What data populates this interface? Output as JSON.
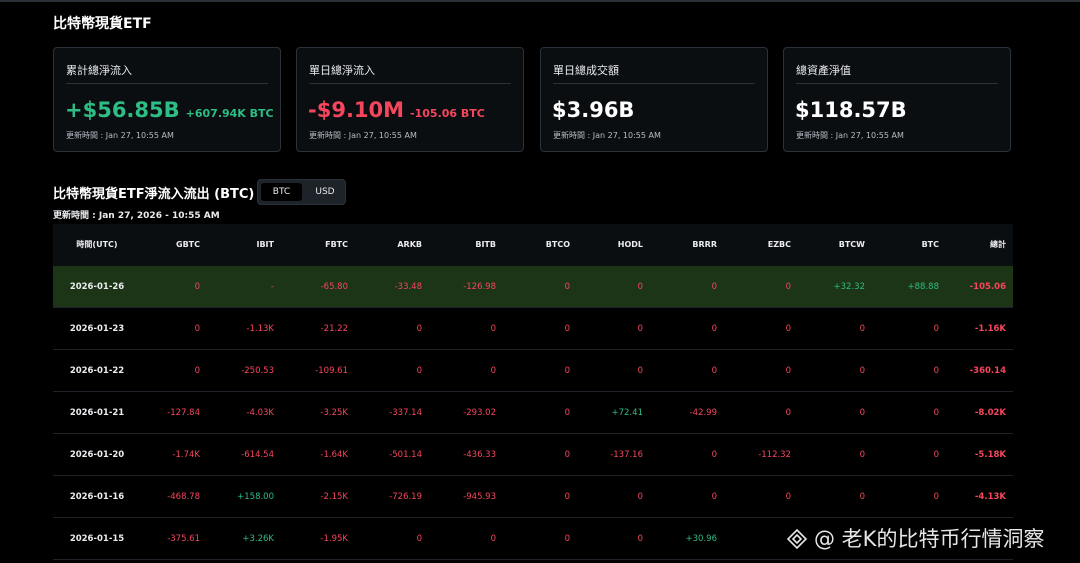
{
  "page": {
    "title": "比特幣現貨ETF"
  },
  "cards": [
    {
      "title": "累計總淨流入",
      "value": "+$56.85B",
      "sub": "+607.94K BTC",
      "value_color": "green",
      "sub_color": "green",
      "updated": "更新時間 : Jan 27, 10:55 AM"
    },
    {
      "title": "單日總淨流入",
      "value": "-$9.10M",
      "sub": "-105.06 BTC",
      "value_color": "red",
      "sub_color": "red",
      "updated": "更新時間 : Jan 27, 10:55 AM"
    },
    {
      "title": "單日總成交額",
      "value": "$3.96B",
      "sub": "",
      "value_color": "white",
      "sub_color": "white",
      "updated": "更新時間 : Jan 27, 10:55 AM"
    },
    {
      "title": "總資產淨值",
      "value": "$118.57B",
      "sub": "",
      "value_color": "white",
      "sub_color": "white",
      "updated": "更新時間 : Jan 27, 10:55 AM"
    }
  ],
  "flow_section": {
    "title": "比特幣現貨ETF淨流入流出 (BTC)",
    "toggle": {
      "options": [
        "BTC",
        "USD"
      ],
      "selected": "BTC"
    },
    "updated": "更新時間 : Jan 27, 2026 - 10:55 AM"
  },
  "table": {
    "headers": [
      "時間(UTC)",
      "GBTC",
      "IBIT",
      "FBTC",
      "ARKB",
      "BITB",
      "BTCO",
      "HODL",
      "BRRR",
      "EZBC",
      "BTCW",
      "BTC",
      "總計"
    ],
    "rows": [
      {
        "highlight": true,
        "cells": [
          "2026-01-26",
          "0",
          "-",
          "-65.80",
          "-33.48",
          "-126.98",
          "0",
          "0",
          "0",
          "0",
          "+32.32",
          "+88.88",
          "-105.06"
        ]
      },
      {
        "highlight": false,
        "cells": [
          "2026-01-23",
          "0",
          "-1.13K",
          "-21.22",
          "0",
          "0",
          "0",
          "0",
          "0",
          "0",
          "0",
          "0",
          "-1.16K"
        ]
      },
      {
        "highlight": false,
        "cells": [
          "2026-01-22",
          "0",
          "-250.53",
          "-109.61",
          "0",
          "0",
          "0",
          "0",
          "0",
          "0",
          "0",
          "0",
          "-360.14"
        ]
      },
      {
        "highlight": false,
        "cells": [
          "2026-01-21",
          "-127.84",
          "-4.03K",
          "-3.25K",
          "-337.14",
          "-293.02",
          "0",
          "+72.41",
          "-42.99",
          "0",
          "0",
          "0",
          "-8.02K"
        ]
      },
      {
        "highlight": false,
        "cells": [
          "2026-01-20",
          "-1.74K",
          "-614.54",
          "-1.64K",
          "-501.14",
          "-436.33",
          "0",
          "-137.16",
          "0",
          "-112.32",
          "0",
          "0",
          "-5.18K"
        ]
      },
      {
        "highlight": false,
        "cells": [
          "2026-01-16",
          "-468.78",
          "+158.00",
          "-2.15K",
          "-726.19",
          "-945.93",
          "0",
          "0",
          "0",
          "0",
          "0",
          "0",
          "-4.13K"
        ]
      },
      {
        "highlight": false,
        "cells": [
          "2026-01-15",
          "-375.61",
          "+3.26K",
          "-1.95K",
          "0",
          "0",
          "0",
          "0",
          "+30.96",
          "",
          "",
          "",
          ""
        ]
      }
    ]
  },
  "watermark": {
    "text": "@ 老K的比特币行情洞察",
    "icon": "diamond-logo-icon"
  },
  "colors": {
    "positive": "#2ebd85",
    "negative": "#f6465d",
    "highlight_row": "#1b3516"
  }
}
